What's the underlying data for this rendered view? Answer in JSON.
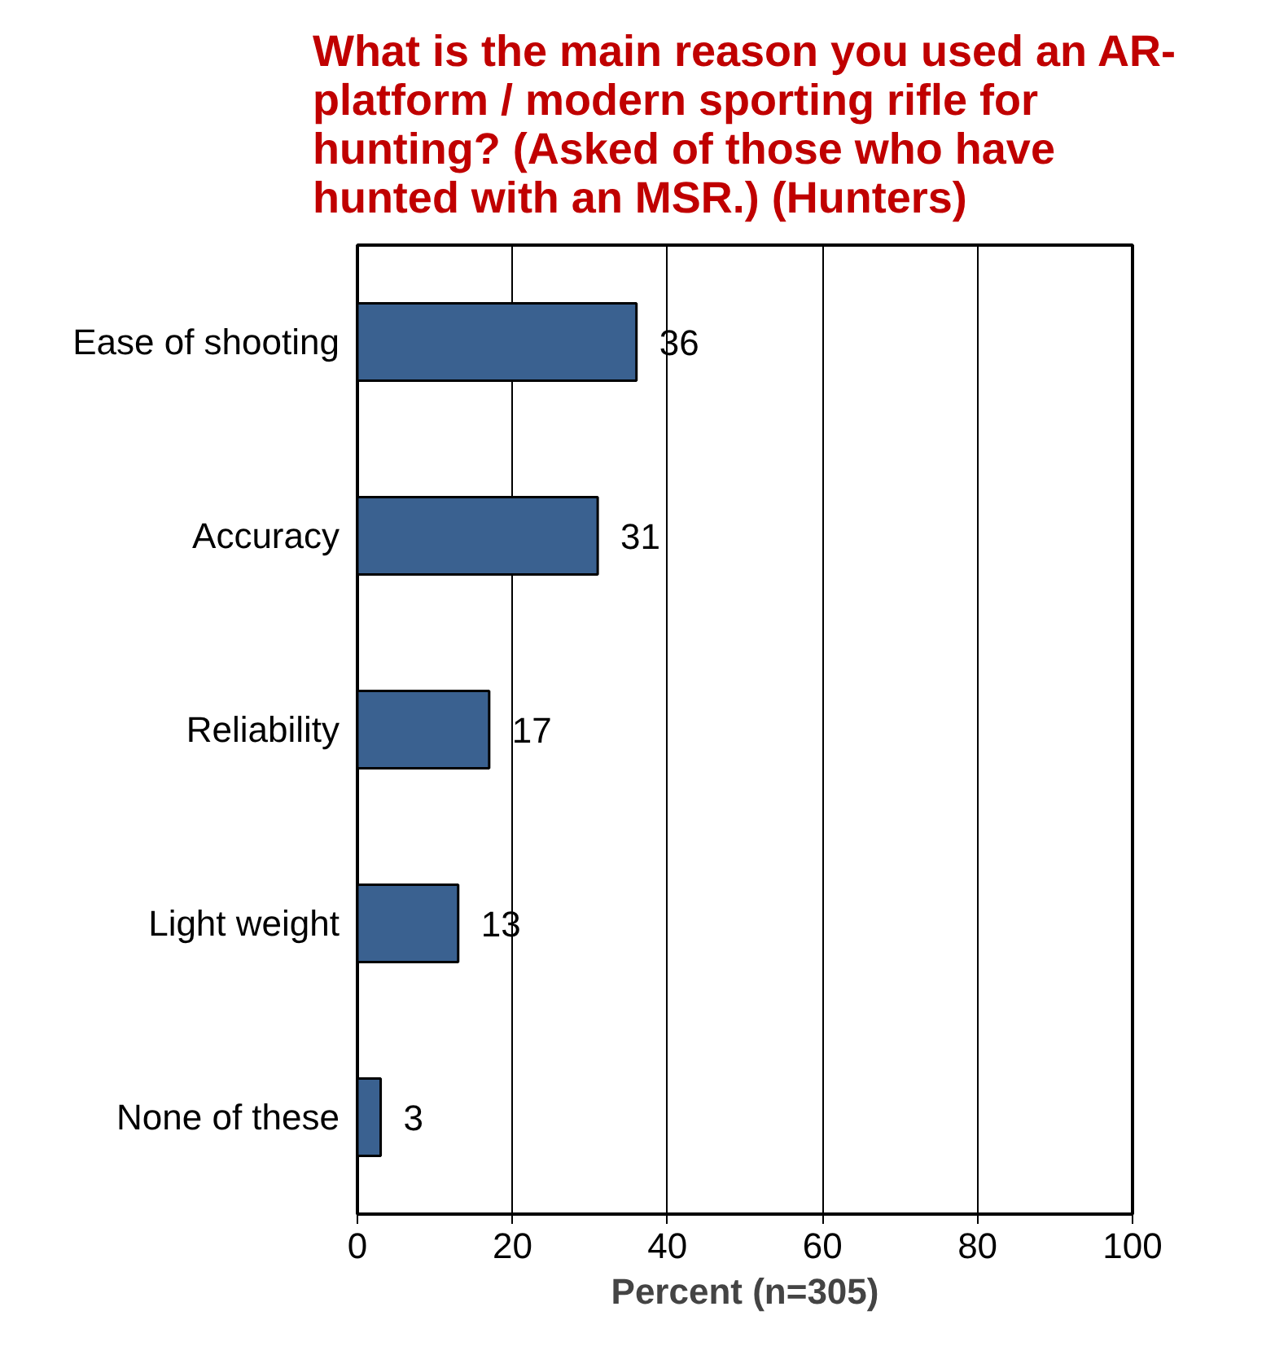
{
  "chart_data": {
    "type": "bar",
    "orientation": "horizontal",
    "title": "What is the main reason you used an AR-platform / modern sporting rifle for hunting? (Asked of those who have hunted with an MSR.) (Hunters)",
    "xlabel": "Percent (n=305)",
    "categories": [
      "Ease of shooting",
      "Accuracy",
      "Reliability",
      "Light weight",
      "None of these"
    ],
    "values": [
      36,
      31,
      17,
      13,
      3
    ],
    "color": "#3a6190",
    "xlim": [
      0,
      100
    ],
    "xticks": [
      0,
      20,
      40,
      60,
      80,
      100
    ],
    "grid": "x",
    "data_labels": true
  }
}
